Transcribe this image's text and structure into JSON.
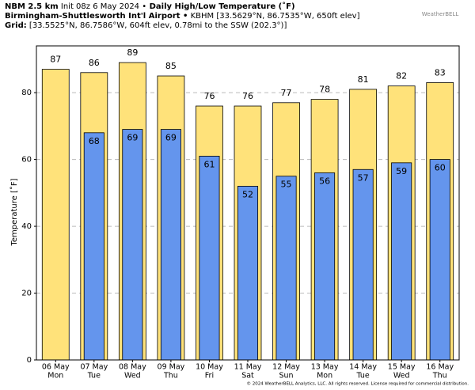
{
  "header": {
    "lines": [
      [
        {
          "text": "NBM 2.5 km",
          "bold": true
        },
        {
          "text": "Init 08z 6 May 2024 •",
          "bold": false
        },
        {
          "text": "Daily High/Low Temperature (˚F)",
          "bold": true
        }
      ],
      [
        {
          "text": "Birmingham-Shuttlesworth Int'l Airport •",
          "bold": true
        },
        {
          "text": "KBHM [33.5629°N, 86.7535°W, 650ft elev]",
          "bold": false
        }
      ],
      [
        {
          "text": "Grid:",
          "bold": true
        },
        {
          "text": "[33.5525°N, 86.7586°W, 604ft elev, 0.78mi to the SSW (202.3°)]",
          "bold": false
        }
      ]
    ],
    "logo": "WeatherBELL"
  },
  "chart_data": {
    "type": "bar",
    "categories": [
      "06 May",
      "07 May",
      "08 May",
      "09 May",
      "10 May",
      "11 May",
      "12 May",
      "13 May",
      "14 May",
      "15 May",
      "16 May"
    ],
    "category_days": [
      "Mon",
      "Tue",
      "Wed",
      "Thu",
      "Fri",
      "Sat",
      "Sun",
      "Mon",
      "Tue",
      "Wed",
      "Thu"
    ],
    "series": [
      {
        "name": "High",
        "color": "#ffe27a",
        "values": [
          87,
          86,
          89,
          85,
          76,
          76,
          77,
          78,
          81,
          82,
          83
        ]
      },
      {
        "name": "Low",
        "color": "#6495ed",
        "values": [
          null,
          68,
          69,
          69,
          61,
          52,
          55,
          56,
          57,
          59,
          60
        ]
      }
    ],
    "y_label": "Temperature [˚F]",
    "ylim": [
      0,
      94
    ],
    "yticks": [
      0,
      20,
      40,
      60,
      80
    ],
    "grid": true,
    "footer": "© 2024 WeatherBELL Analytics, LLC. All rights reserved. License required for commercial distribution."
  }
}
